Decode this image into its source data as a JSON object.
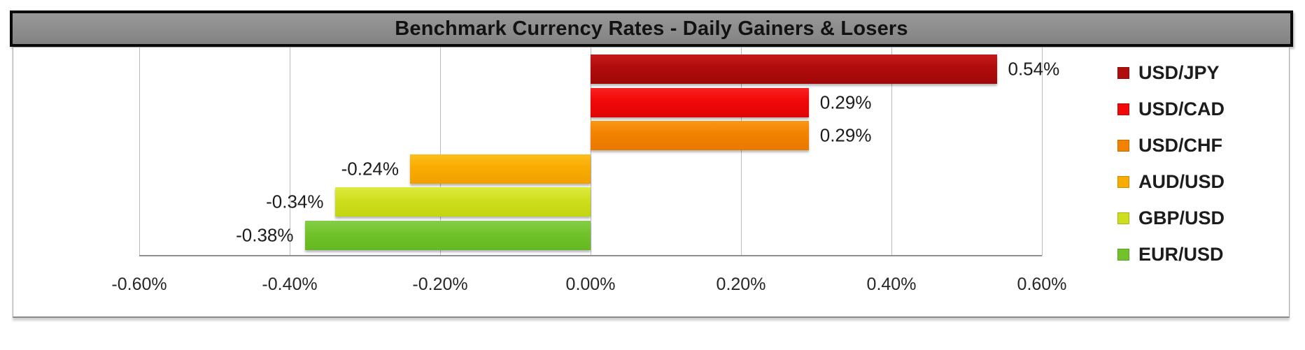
{
  "chart_data": {
    "type": "bar",
    "orientation": "horizontal",
    "title": "Benchmark Currency Rates - Daily Gainers & Losers",
    "categories": [
      "USD/JPY",
      "USD/CAD",
      "USD/CHF",
      "AUD/USD",
      "GBP/USD",
      "EUR/USD"
    ],
    "values": [
      0.54,
      0.29,
      0.29,
      -0.24,
      -0.34,
      -0.38
    ],
    "value_labels": [
      "0.54%",
      "0.29%",
      "0.29%",
      "-0.24%",
      "-0.34%",
      "-0.38%"
    ],
    "bar_colors": [
      "#b00d0d",
      "#f10808",
      "#f28200",
      "#f9ac00",
      "#cede1e",
      "#71c22b"
    ],
    "bar_colors_top": [
      "#c41919",
      "#fb2020",
      "#fa9616",
      "#fdbd1e",
      "#ddeb3e",
      "#85ce48"
    ],
    "bar_colors_bottom": [
      "#9e0707",
      "#e00404",
      "#e87900",
      "#f0a000",
      "#c2d60e",
      "#64b821"
    ],
    "xlabel": "",
    "ylabel": "",
    "x_ticks": [
      "-0.60%",
      "-0.40%",
      "-0.20%",
      "0.00%",
      "0.20%",
      "0.40%",
      "0.60%"
    ],
    "x_tick_values": [
      -0.6,
      -0.4,
      -0.2,
      0.0,
      0.2,
      0.4,
      0.6
    ],
    "xlim": [
      -0.6,
      0.6
    ],
    "grid": true,
    "legend_position": "right"
  },
  "colors": {
    "title_bar_bg": "#8b8b8b",
    "title_text": "#121212",
    "gridline": "#bcbcbc",
    "axis_line": "#8f8f8f",
    "label_text": "#1c1c1c",
    "chart_border": "#a8a8a8",
    "background": "#ffffff"
  }
}
